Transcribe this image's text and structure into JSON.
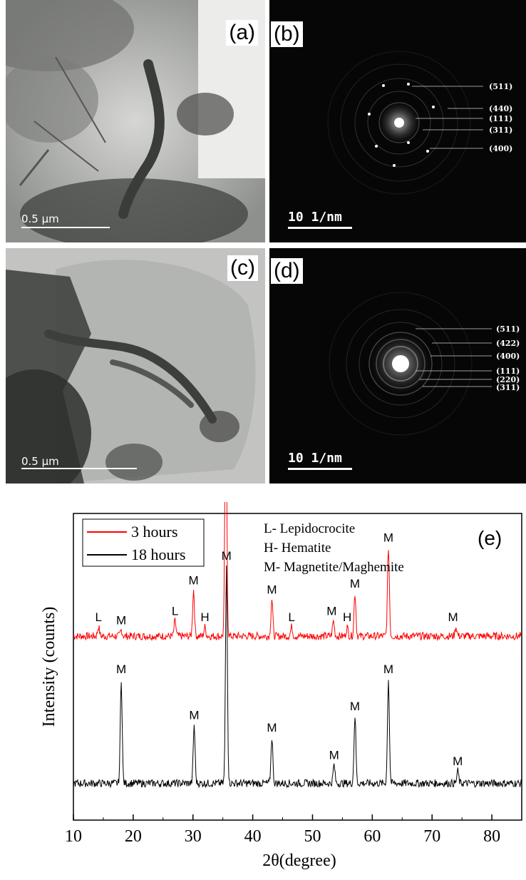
{
  "panels": {
    "a": {
      "label": "(a)",
      "scale": "0.5 µm"
    },
    "b": {
      "label": "(b)",
      "scale": "10 1/nm",
      "rings": [
        "(511)",
        "(440)",
        "(111)",
        "(311)",
        "(400)"
      ]
    },
    "c": {
      "label": "(c)",
      "scale": "0.5 µm"
    },
    "d": {
      "label": "(d)",
      "scale": "10 1/nm",
      "rings": [
        "(511)",
        "(422)",
        "(400)",
        "(111)",
        "(220)",
        "(311)"
      ]
    }
  },
  "chart_data": {
    "type": "line",
    "panel_label": "(e)",
    "xlabel": "2θ(degree)",
    "ylabel": "Intensity (counts)",
    "xlim": [
      10,
      85
    ],
    "xticks": [
      10,
      20,
      30,
      40,
      50,
      60,
      70,
      80
    ],
    "legend": [
      "3 hours",
      "18 hours"
    ],
    "legend_position": "top-left",
    "notes": [
      "L- Lepidocrocite",
      "H- Hematite",
      "M- Magnetite/Maghemite"
    ],
    "colors": {
      "3 hours": "#ff0000",
      "18 hours": "#000000"
    },
    "series": [
      {
        "name": "3 hours",
        "baseline": 0.6,
        "peaks": [
          {
            "x": 14.2,
            "h": 0.03
          },
          {
            "x": 18.0,
            "h": 0.02
          },
          {
            "x": 27.0,
            "h": 0.05
          },
          {
            "x": 30.1,
            "h": 0.15
          },
          {
            "x": 32.0,
            "h": 0.03
          },
          {
            "x": 35.5,
            "h": 0.85
          },
          {
            "x": 43.2,
            "h": 0.12
          },
          {
            "x": 46.5,
            "h": 0.03
          },
          {
            "x": 53.5,
            "h": 0.05
          },
          {
            "x": 55.8,
            "h": 0.03
          },
          {
            "x": 57.1,
            "h": 0.14
          },
          {
            "x": 62.7,
            "h": 0.29
          },
          {
            "x": 74.0,
            "h": 0.03
          }
        ],
        "annotations": [
          {
            "x": 14.2,
            "text": "L"
          },
          {
            "x": 18.0,
            "text": "M"
          },
          {
            "x": 27.0,
            "text": "L"
          },
          {
            "x": 30.1,
            "text": "M"
          },
          {
            "x": 32.0,
            "text": "H"
          },
          {
            "x": 35.5,
            "text": "M"
          },
          {
            "x": 43.2,
            "text": "M"
          },
          {
            "x": 46.5,
            "text": "L"
          },
          {
            "x": 53.2,
            "text": "M"
          },
          {
            "x": 55.8,
            "text": "H"
          },
          {
            "x": 57.1,
            "text": "M"
          },
          {
            "x": 62.7,
            "text": "M"
          },
          {
            "x": 73.5,
            "text": "M"
          }
        ]
      },
      {
        "name": "18 hours",
        "baseline": 0.12,
        "peaks": [
          {
            "x": 18.0,
            "h": 0.34
          },
          {
            "x": 30.2,
            "h": 0.19
          },
          {
            "x": 35.6,
            "h": 0.71
          },
          {
            "x": 43.2,
            "h": 0.15
          },
          {
            "x": 53.6,
            "h": 0.06
          },
          {
            "x": 57.1,
            "h": 0.22
          },
          {
            "x": 62.7,
            "h": 0.34
          },
          {
            "x": 74.3,
            "h": 0.04
          }
        ],
        "annotations": [
          {
            "x": 18.0,
            "text": "M"
          },
          {
            "x": 30.2,
            "text": "M"
          },
          {
            "x": 35.6,
            "text": "M"
          },
          {
            "x": 43.2,
            "text": "M"
          },
          {
            "x": 53.6,
            "text": "M"
          },
          {
            "x": 57.1,
            "text": "M"
          },
          {
            "x": 62.7,
            "text": "M"
          },
          {
            "x": 74.3,
            "text": "M"
          }
        ]
      }
    ]
  }
}
